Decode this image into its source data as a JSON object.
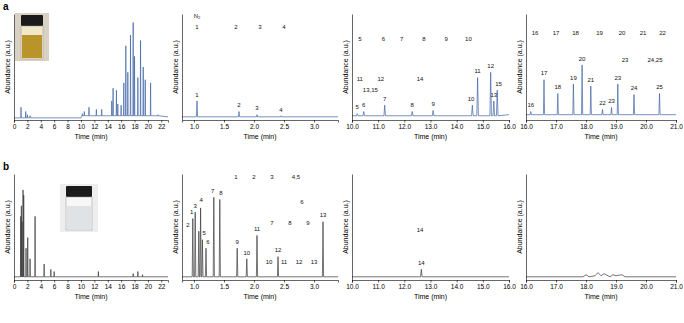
{
  "chart_data": [
    {
      "type": "line",
      "title": "a",
      "x_label": "Time (min)",
      "y_label": "Abundance (a.u.)",
      "color": "#3f63a6",
      "tick_labels": "x",
      "xlim": [
        0,
        23
      ],
      "xticks": [
        0,
        2,
        4,
        6,
        8,
        10,
        12,
        14,
        16,
        18,
        20,
        22
      ],
      "ylim": [
        0,
        100
      ],
      "x": [
        0,
        1.01,
        1.05,
        1.09,
        1.71,
        1.75,
        1.79,
        1.96,
        2.0,
        2.04,
        2.36,
        2.4,
        2.44,
        10.0,
        10.16,
        10.2,
        10.24,
        10.46,
        10.5,
        10.54,
        11.16,
        11.2,
        11.24,
        12.26,
        12.3,
        12.34,
        13.06,
        13.1,
        13.14,
        14.56,
        14.6,
        14.64,
        14.76,
        14.8,
        14.84,
        15.26,
        15.3,
        15.34,
        15.46,
        15.5,
        15.54,
        15.96,
        16.0,
        16.04,
        16.36,
        16.4,
        16.44,
        16.66,
        16.7,
        16.74,
        16.96,
        17.0,
        17.04,
        17.36,
        17.4,
        17.44,
        17.76,
        17.8,
        17.84,
        17.96,
        18.0,
        18.04,
        18.46,
        18.5,
        18.54,
        18.86,
        18.9,
        18.94,
        19.26,
        19.3,
        19.34,
        19.56,
        19.6,
        19.64,
        20.36,
        20.4,
        20.44,
        21.46,
        21.5,
        21.54,
        23
      ],
      "values": [
        2,
        2,
        12,
        2,
        2,
        8,
        2,
        2,
        5,
        2,
        2,
        4,
        2,
        2,
        4,
        6,
        4,
        4,
        8,
        4,
        4,
        12,
        4,
        4,
        10,
        4,
        4,
        10,
        4,
        4,
        18,
        4,
        4,
        30,
        4,
        4,
        28,
        4,
        4,
        15,
        4,
        4,
        14,
        4,
        4,
        35,
        4,
        4,
        70,
        4,
        4,
        45,
        4,
        4,
        80,
        4,
        4,
        92,
        4,
        4,
        60,
        4,
        4,
        40,
        4,
        4,
        75,
        4,
        4,
        50,
        4,
        4,
        38,
        4,
        4,
        35,
        4,
        4,
        5,
        4,
        3
      ]
    },
    {
      "type": "line",
      "x_label": "Time (min)",
      "y_label": "Abundance (a.u.)",
      "color": "#3f63a6",
      "tick_labels": "x",
      "xlim": [
        0.8,
        3.4
      ],
      "xticks": [
        {
          "value": 1.0,
          "label": "1.0"
        },
        {
          "value": 1.5,
          "label": "1.5"
        },
        {
          "value": 2.0,
          "label": "2.0"
        },
        {
          "value": 2.5,
          "label": "2.5"
        },
        {
          "value": 3.0,
          "label": "3.0"
        }
      ],
      "ylim": [
        0,
        100
      ],
      "x": [
        0.8,
        1.04,
        1.05,
        1.06,
        1.74,
        1.75,
        1.76,
        2.04,
        2.05,
        2.06,
        2.44,
        2.45,
        2.46,
        3.4
      ],
      "values": [
        3,
        3,
        18,
        3,
        3,
        8,
        3,
        3,
        5,
        3,
        3,
        4,
        3,
        3
      ],
      "annotations": [
        {
          "text": "1",
          "x": 1.05,
          "y": 22
        },
        {
          "text": "2",
          "x": 1.75,
          "y": 12
        },
        {
          "text": "3",
          "x": 2.05,
          "y": 9
        },
        {
          "text": "4",
          "x": 2.45,
          "y": 8
        },
        {
          "text": "N₂",
          "x": 1.05,
          "y": 96
        },
        {
          "text": "1",
          "x": 1.05,
          "y": 86
        },
        {
          "text": "2",
          "x": 1.7,
          "y": 86
        },
        {
          "text": "3",
          "x": 2.1,
          "y": 86
        },
        {
          "text": "4",
          "x": 2.5,
          "y": 86
        }
      ]
    },
    {
      "type": "line",
      "x_label": "Time (min)",
      "y_label": "Abundance (a.u.)",
      "color": "#3f63a6",
      "tick_labels": "x",
      "xlim": [
        10,
        16
      ],
      "xticks": [
        {
          "value": 10,
          "label": "10.0"
        },
        {
          "value": 11,
          "label": "11.0"
        },
        {
          "value": 12,
          "label": "12.0"
        },
        {
          "value": 13,
          "label": "13.0"
        },
        {
          "value": 14,
          "label": "14.0"
        },
        {
          "value": 15,
          "label": "15.0"
        },
        {
          "value": 16,
          "label": "16.0"
        }
      ],
      "ylim": [
        0,
        100
      ],
      "x": [
        10.0,
        10.17,
        10.2,
        10.23,
        10.42,
        10.45,
        10.48,
        11.22,
        11.25,
        11.28,
        12.27,
        12.3,
        12.33,
        13.07,
        13.1,
        13.13,
        14.57,
        14.6,
        14.63,
        14.77,
        14.8,
        14.83,
        15.27,
        15.3,
        15.33,
        15.39,
        15.42,
        15.45,
        15.52,
        15.55,
        15.58,
        16.0
      ],
      "values": [
        4,
        4,
        6,
        4,
        4,
        8,
        4,
        4,
        14,
        4,
        4,
        8,
        4,
        4,
        9,
        4,
        4,
        14,
        4,
        4,
        40,
        4,
        4,
        45,
        4,
        4,
        18,
        4,
        4,
        28,
        4,
        5
      ],
      "annotations": [
        {
          "text": "5",
          "x": 10.2,
          "y": 10
        },
        {
          "text": "6",
          "x": 10.45,
          "y": 12
        },
        {
          "text": "7",
          "x": 11.25,
          "y": 18
        },
        {
          "text": "8",
          "x": 12.3,
          "y": 12
        },
        {
          "text": "9",
          "x": 13.1,
          "y": 13
        },
        {
          "text": "10",
          "x": 14.55,
          "y": 18
        },
        {
          "text": "11",
          "x": 14.8,
          "y": 44
        },
        {
          "text": "12",
          "x": 15.3,
          "y": 49
        },
        {
          "text": "13",
          "x": 15.42,
          "y": 22
        },
        {
          "text": "15",
          "x": 15.6,
          "y": 32
        },
        {
          "text": "5",
          "x": 10.3,
          "y": 75
        },
        {
          "text": "6",
          "x": 11.2,
          "y": 75
        },
        {
          "text": "7",
          "x": 11.9,
          "y": 75
        },
        {
          "text": "8",
          "x": 12.75,
          "y": 75
        },
        {
          "text": "9",
          "x": 13.6,
          "y": 75
        },
        {
          "text": "10",
          "x": 14.45,
          "y": 75
        },
        {
          "text": "11",
          "x": 10.3,
          "y": 37
        },
        {
          "text": "12",
          "x": 11.1,
          "y": 37
        },
        {
          "text": "13,15",
          "x": 10.7,
          "y": 26
        },
        {
          "text": "14",
          "x": 12.6,
          "y": 37
        }
      ]
    },
    {
      "type": "line",
      "x_label": "Time (min)",
      "y_label": "Abundance (a.u.)",
      "color": "#3f63a6",
      "tick_labels": "x",
      "xlim": [
        16,
        21
      ],
      "xticks": [
        {
          "value": 16,
          "label": "16.0"
        },
        {
          "value": 17,
          "label": "17.0"
        },
        {
          "value": 18,
          "label": "18.0"
        },
        {
          "value": 19,
          "label": "19.0"
        },
        {
          "value": 20,
          "label": "20.0"
        },
        {
          "value": 21,
          "label": "21.0"
        }
      ],
      "ylim": [
        0,
        100
      ],
      "x": [
        16.0,
        16.14,
        16.16,
        16.18,
        16.58,
        16.6,
        16.62,
        17.04,
        17.06,
        17.08,
        17.56,
        17.58,
        17.6,
        17.85,
        17.87,
        17.89,
        18.14,
        18.16,
        18.18,
        18.53,
        18.55,
        18.57,
        18.83,
        18.85,
        18.87,
        19.04,
        19.06,
        19.08,
        19.58,
        19.6,
        19.62,
        20.43,
        20.45,
        20.47,
        21.0
      ],
      "values": [
        5,
        5,
        8,
        5,
        5,
        38,
        5,
        5,
        25,
        5,
        5,
        34,
        5,
        5,
        52,
        5,
        5,
        32,
        5,
        5,
        10,
        5,
        5,
        12,
        5,
        5,
        34,
        5,
        5,
        24,
        5,
        5,
        25,
        5,
        5
      ],
      "annotations": [
        {
          "text": "16",
          "x": 16.16,
          "y": 12
        },
        {
          "text": "17",
          "x": 16.6,
          "y": 42
        },
        {
          "text": "18",
          "x": 17.06,
          "y": 29
        },
        {
          "text": "19",
          "x": 17.58,
          "y": 38
        },
        {
          "text": "20",
          "x": 17.87,
          "y": 56
        },
        {
          "text": "21",
          "x": 18.16,
          "y": 36
        },
        {
          "text": "22",
          "x": 18.55,
          "y": 14
        },
        {
          "text": "23",
          "x": 18.85,
          "y": 16
        },
        {
          "text": "23",
          "x": 19.06,
          "y": 38
        },
        {
          "text": "24",
          "x": 19.6,
          "y": 28
        },
        {
          "text": "25",
          "x": 20.45,
          "y": 29
        },
        {
          "text": "16",
          "x": 16.3,
          "y": 80
        },
        {
          "text": "17",
          "x": 17.0,
          "y": 80
        },
        {
          "text": "18",
          "x": 17.65,
          "y": 80
        },
        {
          "text": "19",
          "x": 18.45,
          "y": 80
        },
        {
          "text": "20",
          "x": 19.2,
          "y": 80
        },
        {
          "text": "21",
          "x": 19.9,
          "y": 80
        },
        {
          "text": "22",
          "x": 20.55,
          "y": 80
        },
        {
          "text": "23",
          "x": 19.3,
          "y": 55
        },
        {
          "text": "24,25",
          "x": 20.3,
          "y": 55
        }
      ]
    },
    {
      "type": "line",
      "title": "b",
      "x_label": "Time (min)",
      "y_label": "Abundance (a.u.)",
      "color": "#3a3a3a",
      "tick_labels": "x",
      "xlim": [
        0,
        23
      ],
      "xticks": [
        0,
        2,
        4,
        6,
        8,
        10,
        12,
        14,
        16,
        18,
        20,
        22
      ],
      "ylim": [
        0,
        100
      ],
      "x": [
        0,
        0.96,
        1.0,
        1.04,
        1.06,
        1.1,
        1.14,
        1.16,
        1.2,
        1.24,
        1.31,
        1.35,
        1.39,
        1.41,
        1.45,
        1.49,
        1.76,
        1.8,
        1.84,
        2.01,
        2.05,
        2.09,
        2.36,
        2.4,
        2.44,
        3.11,
        3.15,
        3.19,
        4.46,
        4.5,
        4.54,
        5.46,
        5.5,
        5.54,
        5.96,
        6.0,
        6.04,
        12.56,
        12.6,
        12.64,
        17.76,
        17.8,
        17.84,
        18.46,
        18.5,
        18.54,
        19.16,
        19.2,
        19.24,
        23
      ],
      "values": [
        3,
        3,
        60,
        3,
        3,
        70,
        3,
        3,
        55,
        3,
        3,
        85,
        3,
        3,
        80,
        3,
        3,
        30,
        3,
        3,
        40,
        3,
        3,
        20,
        3,
        3,
        60,
        3,
        3,
        15,
        3,
        3,
        10,
        3,
        3,
        8,
        3,
        3,
        8,
        3,
        3,
        6,
        3,
        3,
        8,
        3,
        3,
        5,
        3,
        3
      ]
    },
    {
      "type": "line",
      "x_label": "Time (min)",
      "y_label": "Abundance (a.u.)",
      "color": "#3a3a3a",
      "tick_labels": "x",
      "xlim": [
        0.8,
        3.4
      ],
      "xticks": [
        {
          "value": 1.0,
          "label": "1.0"
        },
        {
          "value": 1.5,
          "label": "1.5"
        },
        {
          "value": 2.0,
          "label": "2.0"
        },
        {
          "value": 2.5,
          "label": "2.5"
        },
        {
          "value": 3.0,
          "label": "3.0"
        }
      ],
      "ylim": [
        0,
        100
      ],
      "x": [
        0.8,
        0.97,
        0.98,
        0.99,
        1.01,
        1.02,
        1.03,
        1.07,
        1.08,
        1.09,
        1.1,
        1.11,
        1.12,
        1.13,
        1.14,
        1.15,
        1.19,
        1.2,
        1.21,
        1.32,
        1.33,
        1.34,
        1.42,
        1.43,
        1.44,
        1.71,
        1.72,
        1.73,
        1.87,
        1.88,
        1.89,
        2.04,
        2.05,
        2.06,
        2.39,
        2.4,
        2.41,
        3.14,
        3.15,
        3.16,
        3.4
      ],
      "values": [
        3,
        3,
        58,
        3,
        3,
        64,
        3,
        3,
        46,
        3,
        3,
        68,
        3,
        3,
        38,
        3,
        3,
        30,
        3,
        3,
        78,
        3,
        3,
        76,
        3,
        3,
        30,
        3,
        3,
        20,
        3,
        3,
        42,
        3,
        3,
        22,
        3,
        3,
        55,
        3,
        3
      ],
      "annotations": [
        {
          "text": "1",
          "x": 0.96,
          "y": 62
        },
        {
          "text": "2",
          "x": 0.9,
          "y": 50
        },
        {
          "text": "3",
          "x": 1.02,
          "y": 68
        },
        {
          "text": "4",
          "x": 1.12,
          "y": 74
        },
        {
          "text": "5",
          "x": 1.17,
          "y": 42
        },
        {
          "text": "6",
          "x": 1.23,
          "y": 34
        },
        {
          "text": "7",
          "x": 1.31,
          "y": 82
        },
        {
          "text": "8",
          "x": 1.45,
          "y": 80
        },
        {
          "text": "9",
          "x": 1.72,
          "y": 34
        },
        {
          "text": "10",
          "x": 1.88,
          "y": 24
        },
        {
          "text": "11",
          "x": 2.05,
          "y": 46
        },
        {
          "text": "12",
          "x": 2.4,
          "y": 26
        },
        {
          "text": "13",
          "x": 3.15,
          "y": 59
        },
        {
          "text": "1",
          "x": 1.7,
          "y": 95
        },
        {
          "text": "2",
          "x": 2.0,
          "y": 95
        },
        {
          "text": "3",
          "x": 2.3,
          "y": 95
        },
        {
          "text": "4,5",
          "x": 2.7,
          "y": 95
        },
        {
          "text": "6",
          "x": 2.8,
          "y": 72
        },
        {
          "text": "7",
          "x": 2.3,
          "y": 52
        },
        {
          "text": "8",
          "x": 2.6,
          "y": 52
        },
        {
          "text": "9",
          "x": 2.9,
          "y": 52
        },
        {
          "text": "10",
          "x": 2.25,
          "y": 15
        },
        {
          "text": "11",
          "x": 2.5,
          "y": 15
        },
        {
          "text": "12",
          "x": 2.75,
          "y": 15
        },
        {
          "text": "13",
          "x": 3.0,
          "y": 15
        }
      ]
    },
    {
      "type": "line",
      "x_label": "Time (min)",
      "y_label": "Abundance (a.u.)",
      "color": "#3a3a3a",
      "tick_labels": "x",
      "xlim": [
        10,
        16
      ],
      "xticks": [
        {
          "value": 10,
          "label": "10.0"
        },
        {
          "value": 11,
          "label": "11.0"
        },
        {
          "value": 12,
          "label": "12.0"
        },
        {
          "value": 13,
          "label": "13.0"
        },
        {
          "value": 14,
          "label": "14.0"
        },
        {
          "value": 15,
          "label": "15.0"
        },
        {
          "value": 16,
          "label": "16.0"
        }
      ],
      "ylim": [
        0,
        100
      ],
      "x": [
        10.0,
        12.62,
        12.65,
        12.68,
        16.0
      ],
      "values": [
        3,
        3,
        10,
        3,
        3
      ],
      "annotations": [
        {
          "text": "14",
          "x": 12.65,
          "y": 14
        },
        {
          "text": "14",
          "x": 12.6,
          "y": 45
        }
      ]
    },
    {
      "type": "line",
      "x_label": "Time (min)",
      "y_label": "Abundance (a.u.)",
      "color": "#3a3a3a",
      "tick_labels": "x",
      "xlim": [
        16,
        21
      ],
      "xticks": [
        {
          "value": 16,
          "label": "16.0"
        },
        {
          "value": 17,
          "label": "17.0"
        },
        {
          "value": 18,
          "label": "18.0"
        },
        {
          "value": 19,
          "label": "19.0"
        },
        {
          "value": 20,
          "label": "20.0"
        },
        {
          "value": 21,
          "label": "21.0"
        }
      ],
      "ylim": [
        0,
        100
      ],
      "x": [
        16.0,
        17.9,
        18.0,
        18.1,
        18.3,
        18.4,
        18.5,
        18.6,
        18.8,
        18.9,
        19.0,
        19.2,
        19.3,
        21.0
      ],
      "values": [
        3,
        3,
        5,
        3,
        4,
        7,
        4,
        6,
        3,
        5,
        4,
        5,
        3,
        3
      ]
    }
  ]
}
